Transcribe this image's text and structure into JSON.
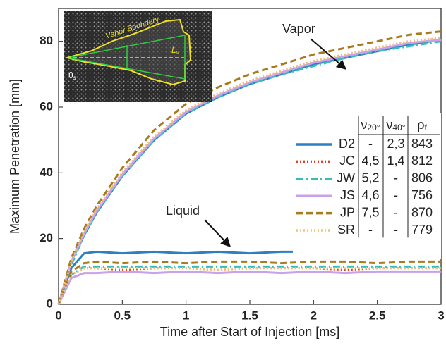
{
  "chart_data": {
    "type": "line",
    "x_label": "Time after Start of Injection [ms]",
    "y_label": "Maximum Penetration [mm]",
    "xlim": [
      0,
      3
    ],
    "ylim": [
      0,
      90
    ],
    "xticks": [
      0,
      0.5,
      1,
      1.5,
      2,
      2.5,
      3
    ],
    "yticks": [
      0,
      20,
      40,
      60,
      80
    ],
    "x": [
      0,
      0.1,
      0.2,
      0.3,
      0.5,
      0.75,
      1,
      1.25,
      1.5,
      1.75,
      2,
      2.25,
      2.5,
      2.75,
      3
    ],
    "annotations": [
      "Vapor",
      "Liquid"
    ],
    "inset": {
      "boundary_label": "Vapor Boundary",
      "angle": "θ",
      "angle_sub": "s",
      "length": "L",
      "length_sub": "v"
    },
    "table_headers": [
      {
        "text": "ν",
        "sub": "20°"
      },
      {
        "text": "ν",
        "sub": "40°"
      },
      {
        "text": "ρ",
        "sub": "f"
      }
    ],
    "series": [
      {
        "name": "D2",
        "color": "#2e7ec4",
        "dash": "solid",
        "v20": "-",
        "v40": "2,3",
        "rho": 843,
        "vapor": [
          0,
          13,
          21,
          28,
          39,
          50,
          58,
          63,
          67,
          70,
          73,
          75,
          77,
          79,
          80.5
        ],
        "liquid": [
          0,
          11,
          15.5,
          16,
          15.5,
          16,
          15.5,
          16,
          15.5,
          16,
          16,
          15.5,
          16,
          16,
          16
        ]
      },
      {
        "name": "JC",
        "color": "#e0402a",
        "dash": "dotted",
        "v20": "4,5",
        "v40": "1,4",
        "rho": 812,
        "vapor": [
          0,
          13,
          22,
          29,
          40,
          51,
          59,
          64,
          68,
          71,
          74,
          76,
          78,
          80,
          81
        ],
        "liquid": [
          0,
          9,
          11,
          11,
          10.5,
          11,
          11,
          10.5,
          11,
          11,
          11,
          10.5,
          11,
          11,
          11
        ]
      },
      {
        "name": "JW",
        "color": "#36bcbc",
        "dash": "dashdot",
        "v20": "5,2",
        "v40": "-",
        "rho": 806,
        "vapor": [
          0,
          12,
          21,
          28,
          39,
          50,
          58,
          63,
          67,
          70,
          72.5,
          75,
          77,
          78.5,
          80
        ],
        "liquid": [
          0,
          9,
          11.5,
          11.5,
          11.5,
          11.5,
          11.5,
          11.5,
          11.5,
          11.5,
          11.5,
          11.5,
          11.5,
          11.5,
          11.5
        ]
      },
      {
        "name": "JS",
        "color": "#c9a0ea",
        "dash": "solid",
        "v20": "4,6",
        "v40": "-",
        "rho": 756,
        "vapor": [
          0,
          13,
          21.5,
          28.5,
          39.5,
          50.5,
          58.5,
          63.5,
          67.5,
          70.5,
          73.5,
          75.5,
          77.5,
          79.5,
          80.5
        ],
        "liquid": [
          0,
          8,
          9.5,
          9.5,
          10,
          9.5,
          10,
          9.5,
          10,
          9.5,
          10,
          9.5,
          10,
          10,
          10
        ]
      },
      {
        "name": "JP",
        "color": "#a87a1e",
        "dash": "dashed",
        "v20": "7,5",
        "v40": "-",
        "rho": 870,
        "vapor": [
          0,
          14,
          23,
          30,
          41.5,
          53,
          61,
          66,
          70,
          73,
          76,
          78,
          80,
          82,
          83
        ],
        "liquid": [
          0,
          10,
          12.5,
          13,
          12.5,
          13,
          12.5,
          13,
          13,
          12.5,
          13,
          13,
          12.5,
          13,
          13
        ]
      },
      {
        "name": "SR",
        "color": "#f2c27a",
        "dash": "dotted",
        "v20": "-",
        "v40": "-",
        "rho": 779,
        "vapor": [
          0,
          13,
          22,
          29,
          40,
          51,
          59,
          64,
          68,
          71,
          74,
          76,
          78,
          80,
          81
        ],
        "liquid": [
          0,
          9,
          11,
          11,
          11,
          11,
          11,
          10.5,
          11,
          11,
          11,
          11,
          11,
          11,
          11
        ]
      }
    ]
  }
}
